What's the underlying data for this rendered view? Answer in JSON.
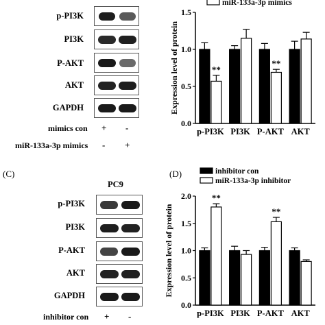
{
  "figure": {
    "panel_c_letter": "(C)",
    "panel_d_letter": "(D)",
    "panel_c_cell_line": "PC9"
  },
  "top_blot": {
    "labels": [
      "p-PI3K",
      "PI3K",
      "P-AKT",
      "AKT",
      "GAPDH"
    ],
    "conditions": [
      {
        "name": "mimics con",
        "signs": [
          "+",
          "-"
        ]
      },
      {
        "name": "miR-133a-3p mimics",
        "signs": [
          "-",
          "+"
        ]
      }
    ]
  },
  "bottom_blot": {
    "labels": [
      "p-PI3K",
      "PI3K",
      "P-AKT",
      "AKT",
      "GAPDH"
    ],
    "conditions": [
      {
        "name": "inhibitor con",
        "signs": [
          "+",
          "-"
        ]
      }
    ]
  },
  "chart_data": [
    {
      "type": "bar",
      "ylabel": "Expression level of protein",
      "categories": [
        "p-PI3K",
        "PI3K",
        "P-AKT",
        "AKT"
      ],
      "ylim": [
        0.0,
        1.5
      ],
      "yticks": [
        "0.0",
        "0.5",
        "1.0",
        "1.5"
      ],
      "series": [
        {
          "name": "",
          "color": "#000000",
          "values": [
            1.0,
            1.0,
            1.0,
            1.0
          ],
          "errors": [
            0.09,
            0.05,
            0.08,
            0.11
          ]
        },
        {
          "name": "miR-133a-3p mimics",
          "color": "#ffffff",
          "values": [
            0.57,
            1.15,
            0.69,
            1.14
          ],
          "errors": [
            0.08,
            0.12,
            0.04,
            0.09
          ]
        }
      ],
      "annotations": [
        {
          "category": "p-PI3K",
          "text": "**"
        },
        {
          "category": "P-AKT",
          "text": "**"
        }
      ],
      "legend": "top"
    },
    {
      "type": "bar",
      "ylabel": "Expression level of protein",
      "categories": [
        "p-PI3K",
        "PI3K",
        "P-AKT",
        "AKT"
      ],
      "ylim": [
        0.0,
        2.0
      ],
      "yticks": [
        "0.0",
        "0.5",
        "1.0",
        "1.5",
        "2.0"
      ],
      "series": [
        {
          "name": "inhibitor con",
          "color": "#000000",
          "values": [
            1.0,
            1.0,
            1.0,
            1.0
          ],
          "errors": [
            0.05,
            0.08,
            0.06,
            0.05
          ]
        },
        {
          "name": "miR-133a-3p inhibitor",
          "color": "#ffffff",
          "values": [
            1.8,
            0.93,
            1.53,
            0.8
          ],
          "errors": [
            0.06,
            0.07,
            0.08,
            0.03
          ]
        }
      ],
      "annotations": [
        {
          "category": "p-PI3K",
          "text": "**"
        },
        {
          "category": "P-AKT",
          "text": "**"
        }
      ],
      "legend": "top"
    }
  ]
}
